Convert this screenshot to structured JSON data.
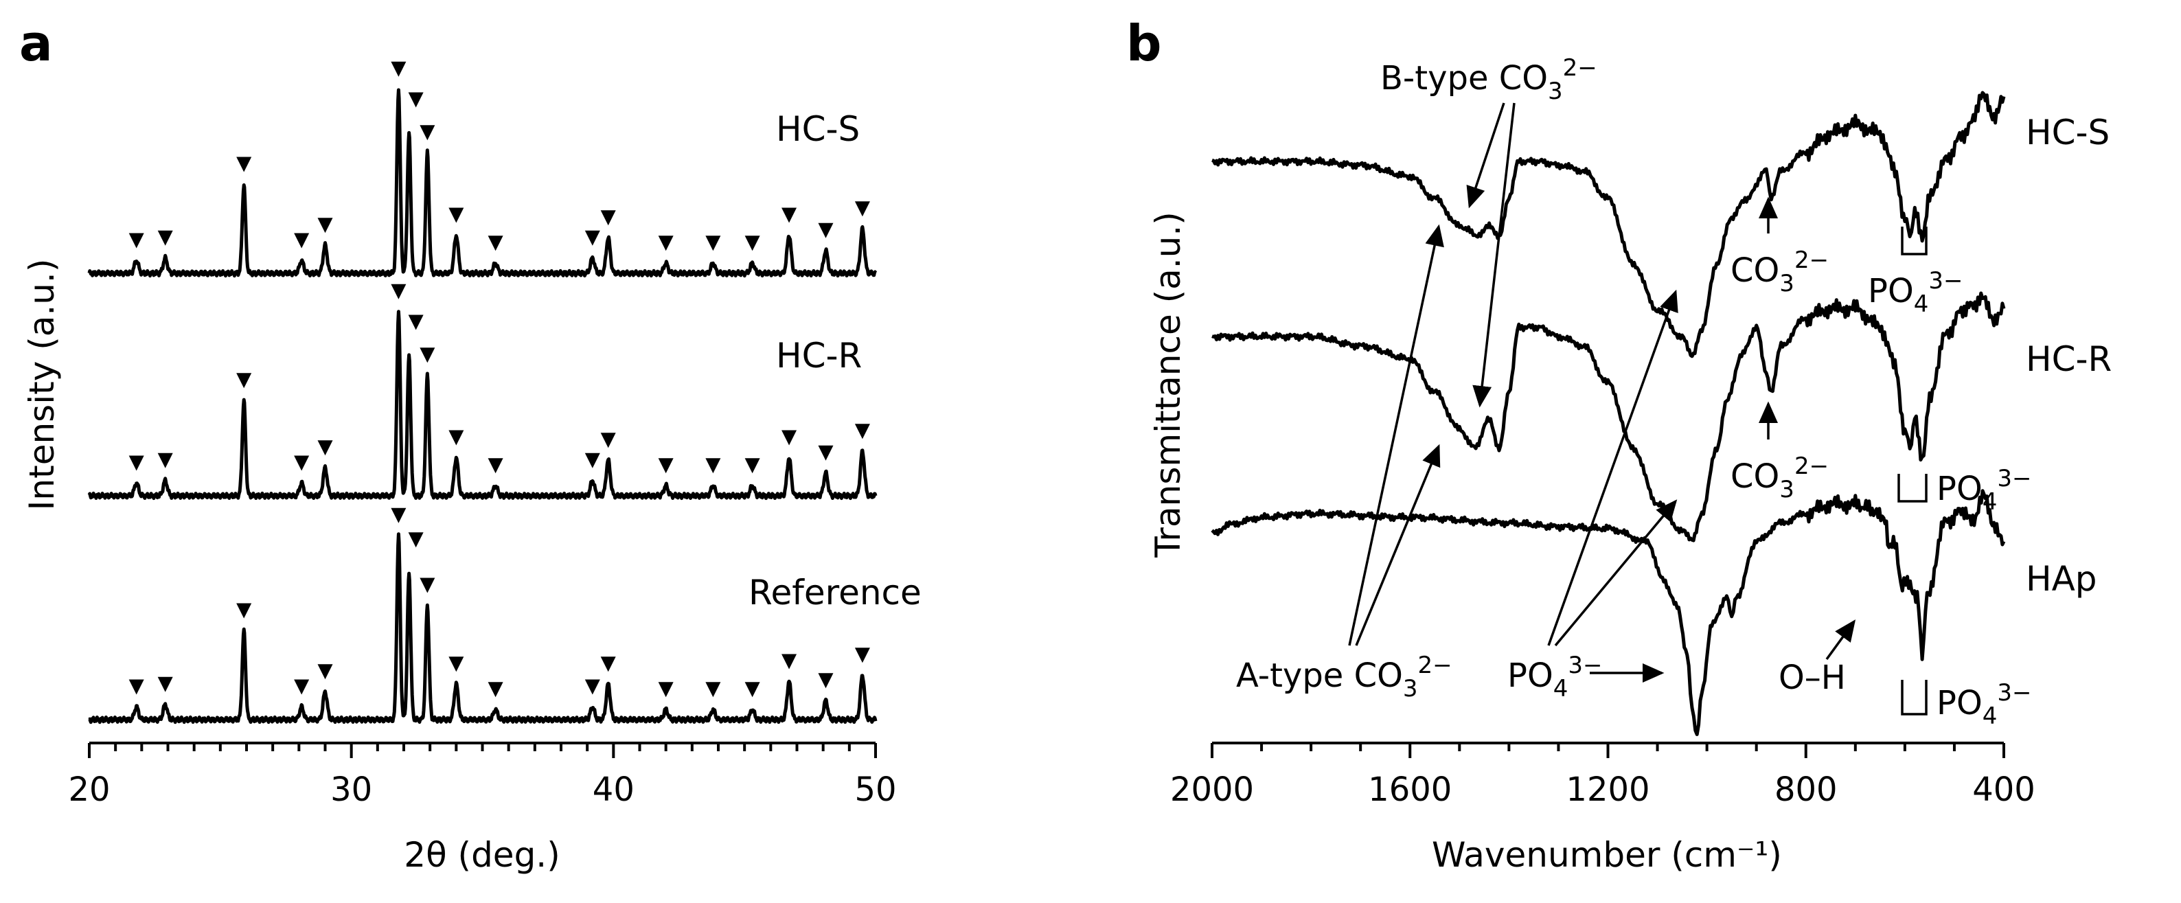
{
  "panels": {
    "a_letter": "a",
    "b_letter": "b"
  },
  "chart_data": [
    {
      "type": "line",
      "panel": "a",
      "xlabel": "2θ (deg.)",
      "ylabel": "Intensity (a.u.)",
      "xlim": [
        20,
        50
      ],
      "xticks": [
        20,
        30,
        40,
        50
      ],
      "grid": false,
      "marker_symbol": "▼",
      "series": [
        {
          "name": "HC-S",
          "baseline": 0.0,
          "peaks": [
            {
              "x": 21.8,
              "h": 0.1,
              "marked": true
            },
            {
              "x": 22.9,
              "h": 0.12,
              "marked": true
            },
            {
              "x": 25.9,
              "h": 0.7,
              "marked": true
            },
            {
              "x": 28.1,
              "h": 0.1,
              "marked": true
            },
            {
              "x": 29.0,
              "h": 0.22,
              "marked": true
            },
            {
              "x": 31.8,
              "h": 1.45,
              "marked": true
            },
            {
              "x": 32.2,
              "h": 1.1,
              "marked": true
            },
            {
              "x": 32.9,
              "h": 0.95,
              "marked": true
            },
            {
              "x": 34.0,
              "h": 0.3,
              "marked": true
            },
            {
              "x": 35.5,
              "h": 0.08,
              "marked": true
            },
            {
              "x": 39.2,
              "h": 0.12,
              "marked": true
            },
            {
              "x": 39.8,
              "h": 0.28,
              "marked": true
            },
            {
              "x": 42.0,
              "h": 0.08,
              "marked": true
            },
            {
              "x": 43.8,
              "h": 0.08,
              "marked": true
            },
            {
              "x": 45.3,
              "h": 0.08,
              "marked": true
            },
            {
              "x": 46.7,
              "h": 0.3,
              "marked": true
            },
            {
              "x": 48.1,
              "h": 0.18,
              "marked": true
            },
            {
              "x": 49.5,
              "h": 0.35,
              "marked": true
            }
          ]
        },
        {
          "name": "HC-R",
          "baseline": 0.0,
          "peaks": [
            {
              "x": 21.8,
              "h": 0.1,
              "marked": true
            },
            {
              "x": 22.9,
              "h": 0.12,
              "marked": true
            },
            {
              "x": 25.9,
              "h": 0.75,
              "marked": true
            },
            {
              "x": 28.1,
              "h": 0.1,
              "marked": true
            },
            {
              "x": 29.0,
              "h": 0.22,
              "marked": true
            },
            {
              "x": 31.8,
              "h": 1.45,
              "marked": true
            },
            {
              "x": 32.2,
              "h": 1.1,
              "marked": true
            },
            {
              "x": 32.9,
              "h": 0.95,
              "marked": true
            },
            {
              "x": 34.0,
              "h": 0.3,
              "marked": true
            },
            {
              "x": 35.5,
              "h": 0.08,
              "marked": true
            },
            {
              "x": 39.2,
              "h": 0.12,
              "marked": true
            },
            {
              "x": 39.8,
              "h": 0.28,
              "marked": true
            },
            {
              "x": 42.0,
              "h": 0.08,
              "marked": true
            },
            {
              "x": 43.8,
              "h": 0.08,
              "marked": true
            },
            {
              "x": 45.3,
              "h": 0.08,
              "marked": true
            },
            {
              "x": 46.7,
              "h": 0.3,
              "marked": true
            },
            {
              "x": 48.1,
              "h": 0.18,
              "marked": true
            },
            {
              "x": 49.5,
              "h": 0.35,
              "marked": true
            }
          ]
        },
        {
          "name": "Reference",
          "baseline": 0.0,
          "peaks": [
            {
              "x": 21.8,
              "h": 0.1,
              "marked": true
            },
            {
              "x": 22.9,
              "h": 0.12,
              "marked": true
            },
            {
              "x": 25.9,
              "h": 0.7,
              "marked": true
            },
            {
              "x": 28.1,
              "h": 0.1,
              "marked": true
            },
            {
              "x": 29.0,
              "h": 0.22,
              "marked": true
            },
            {
              "x": 31.8,
              "h": 1.45,
              "marked": true
            },
            {
              "x": 32.2,
              "h": 1.15,
              "marked": true
            },
            {
              "x": 32.9,
              "h": 0.9,
              "marked": true
            },
            {
              "x": 34.0,
              "h": 0.28,
              "marked": true
            },
            {
              "x": 35.5,
              "h": 0.08,
              "marked": true
            },
            {
              "x": 39.2,
              "h": 0.1,
              "marked": true
            },
            {
              "x": 39.8,
              "h": 0.28,
              "marked": true
            },
            {
              "x": 42.0,
              "h": 0.08,
              "marked": true
            },
            {
              "x": 43.8,
              "h": 0.08,
              "marked": true
            },
            {
              "x": 45.3,
              "h": 0.08,
              "marked": true
            },
            {
              "x": 46.7,
              "h": 0.3,
              "marked": true
            },
            {
              "x": 48.1,
              "h": 0.15,
              "marked": true
            },
            {
              "x": 49.5,
              "h": 0.35,
              "marked": true
            }
          ]
        }
      ]
    },
    {
      "type": "line",
      "panel": "b",
      "xlabel": "Wavenumber (cm⁻¹)",
      "ylabel": "Transmittance (a.u.)",
      "xlim": [
        2000,
        400
      ],
      "xticks": [
        2000,
        1600,
        1200,
        800,
        400
      ],
      "reversed_x": true,
      "grid": false,
      "series": [
        {
          "name": "HC-S",
          "points": [
            [
              2000,
              0.0
            ],
            [
              1900,
              0.0
            ],
            [
              1800,
              0.0
            ],
            [
              1700,
              -0.02
            ],
            [
              1600,
              -0.08
            ],
            [
              1550,
              -0.2
            ],
            [
              1500,
              -0.35
            ],
            [
              1460,
              -0.4
            ],
            [
              1440,
              -0.35
            ],
            [
              1420,
              -0.4
            ],
            [
              1400,
              -0.2
            ],
            [
              1380,
              0.0
            ],
            [
              1340,
              0.0
            ],
            [
              1300,
              -0.02
            ],
            [
              1250,
              -0.05
            ],
            [
              1200,
              -0.2
            ],
            [
              1150,
              -0.55
            ],
            [
              1100,
              -0.8
            ],
            [
              1050,
              -0.95
            ],
            [
              1030,
              -1.05
            ],
            [
              1010,
              -0.9
            ],
            [
              980,
              -0.55
            ],
            [
              950,
              -0.3
            ],
            [
              920,
              -0.2
            ],
            [
              880,
              -0.05
            ],
            [
              870,
              -0.2
            ],
            [
              850,
              -0.05
            ],
            [
              800,
              0.05
            ],
            [
              750,
              0.15
            ],
            [
              700,
              0.2
            ],
            [
              650,
              0.15
            ],
            [
              620,
              -0.05
            ],
            [
              600,
              -0.3
            ],
            [
              590,
              -0.4
            ],
            [
              580,
              -0.28
            ],
            [
              565,
              -0.4
            ],
            [
              550,
              -0.2
            ],
            [
              520,
              0.0
            ],
            [
              480,
              0.15
            ],
            [
              440,
              0.35
            ],
            [
              420,
              0.25
            ],
            [
              400,
              0.35
            ]
          ]
        },
        {
          "name": "HC-R",
          "points": [
            [
              2000,
              0.0
            ],
            [
              1900,
              0.0
            ],
            [
              1800,
              0.0
            ],
            [
              1700,
              -0.05
            ],
            [
              1600,
              -0.12
            ],
            [
              1550,
              -0.3
            ],
            [
              1500,
              -0.5
            ],
            [
              1470,
              -0.6
            ],
            [
              1440,
              -0.45
            ],
            [
              1420,
              -0.6
            ],
            [
              1400,
              -0.3
            ],
            [
              1380,
              0.05
            ],
            [
              1340,
              0.05
            ],
            [
              1300,
              0.0
            ],
            [
              1250,
              -0.05
            ],
            [
              1200,
              -0.25
            ],
            [
              1150,
              -0.6
            ],
            [
              1100,
              -0.9
            ],
            [
              1050,
              -1.05
            ],
            [
              1030,
              -1.1
            ],
            [
              1010,
              -0.95
            ],
            [
              980,
              -0.6
            ],
            [
              960,
              -0.35
            ],
            [
              930,
              -0.1
            ],
            [
              900,
              0.05
            ],
            [
              880,
              -0.2
            ],
            [
              870,
              -0.3
            ],
            [
              850,
              -0.05
            ],
            [
              800,
              0.1
            ],
            [
              750,
              0.15
            ],
            [
              700,
              0.15
            ],
            [
              650,
              0.05
            ],
            [
              620,
              -0.15
            ],
            [
              600,
              -0.5
            ],
            [
              590,
              -0.6
            ],
            [
              580,
              -0.45
            ],
            [
              565,
              -0.65
            ],
            [
              550,
              -0.35
            ],
            [
              520,
              0.0
            ],
            [
              480,
              0.15
            ],
            [
              440,
              0.2
            ],
            [
              420,
              0.1
            ],
            [
              400,
              0.15
            ]
          ]
        },
        {
          "name": "HAp",
          "points": [
            [
              2000,
              0.0
            ],
            [
              1950,
              0.05
            ],
            [
              1900,
              0.08
            ],
            [
              1800,
              0.1
            ],
            [
              1600,
              0.08
            ],
            [
              1400,
              0.05
            ],
            [
              1300,
              0.03
            ],
            [
              1200,
              0.02
            ],
            [
              1120,
              -0.05
            ],
            [
              1090,
              -0.25
            ],
            [
              1060,
              -0.4
            ],
            [
              1040,
              -0.65
            ],
            [
              1030,
              -0.95
            ],
            [
              1020,
              -1.1
            ],
            [
              1010,
              -0.85
            ],
            [
              990,
              -0.5
            ],
            [
              960,
              -0.35
            ],
            [
              950,
              -0.45
            ],
            [
              940,
              -0.35
            ],
            [
              900,
              -0.05
            ],
            [
              850,
              0.05
            ],
            [
              800,
              0.1
            ],
            [
              750,
              0.15
            ],
            [
              700,
              0.15
            ],
            [
              660,
              0.12
            ],
            [
              640,
              0.05
            ],
            [
              632,
              -0.1
            ],
            [
              620,
              -0.05
            ],
            [
              605,
              -0.3
            ],
            [
              595,
              -0.25
            ],
            [
              575,
              -0.35
            ],
            [
              565,
              -0.65
            ],
            [
              555,
              -0.35
            ],
            [
              520,
              0.05
            ],
            [
              480,
              0.12
            ],
            [
              460,
              0.05
            ],
            [
              440,
              0.2
            ],
            [
              420,
              0.05
            ],
            [
              400,
              -0.05
            ]
          ]
        }
      ],
      "annotations": {
        "b_type_prefix": "B-type CO",
        "a_type_prefix": "A-type CO",
        "co3_prefix": "CO",
        "po4_prefix": "PO",
        "sub3": "3",
        "sub4": "4",
        "sup2": "2−",
        "sup3": "3−",
        "oh": "O–H"
      }
    }
  ]
}
